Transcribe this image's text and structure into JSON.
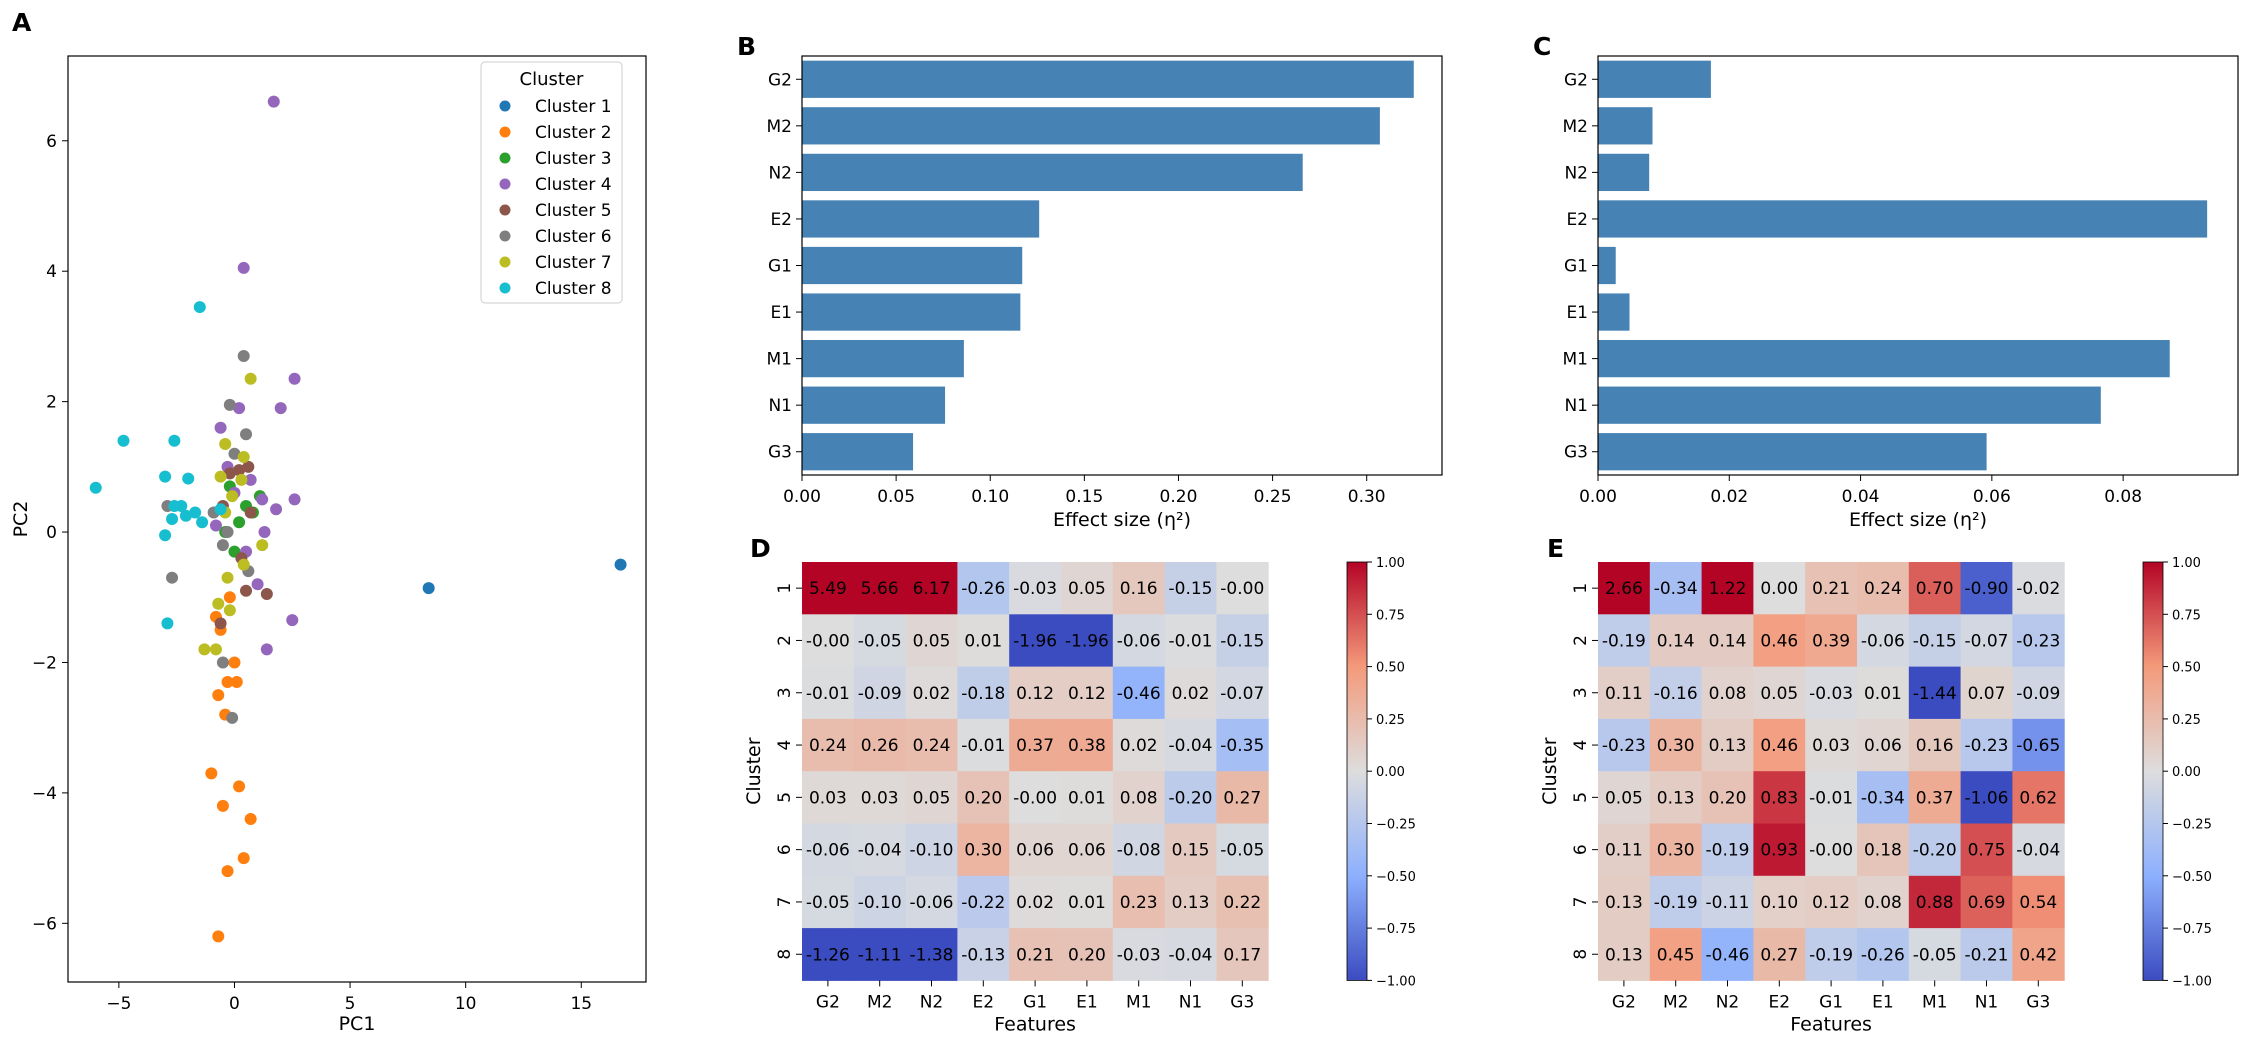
{
  "panel_letters": {
    "a": "A",
    "b": "B",
    "c": "C",
    "d": "D",
    "e": "E"
  },
  "colors": {
    "bar": "#4682b4",
    "clusters": [
      "#1f77b4",
      "#ff7f0e",
      "#2ca02c",
      "#9467bd",
      "#8c564b",
      "#7f7f7f",
      "#bcbd22",
      "#17becf"
    ],
    "cmap": [
      "#3b4cc0",
      "#dddddd",
      "#b40426"
    ]
  },
  "chart_data": [
    {
      "id": "A",
      "type": "scatter",
      "xlabel": "PC1",
      "ylabel": "PC2",
      "xlim": [
        -7.2,
        17.8
      ],
      "ylim": [
        -6.9,
        7.3
      ],
      "xticks": [
        -5,
        0,
        5,
        10,
        15
      ],
      "yticks": [
        -6,
        -4,
        -2,
        0,
        2,
        4,
        6
      ],
      "grid": false,
      "legend_title": "Cluster",
      "legend_position": "top-right",
      "series": [
        {
          "name": "Cluster 1",
          "points": [
            [
              16.7,
              -0.5
            ],
            [
              8.4,
              -0.86
            ]
          ]
        },
        {
          "name": "Cluster 2",
          "points": [
            [
              -0.7,
              -6.2
            ],
            [
              -0.3,
              -5.2
            ],
            [
              0.4,
              -5.0
            ],
            [
              0.7,
              -4.4
            ],
            [
              -0.5,
              -4.2
            ],
            [
              0.2,
              -3.9
            ],
            [
              -1.0,
              -3.7
            ],
            [
              -0.4,
              -2.8
            ],
            [
              -0.7,
              -2.5
            ],
            [
              -0.3,
              -2.3
            ],
            [
              0.1,
              -2.3
            ],
            [
              0.0,
              -2.0
            ],
            [
              -0.6,
              -1.5
            ],
            [
              -0.8,
              -1.3
            ],
            [
              -0.2,
              -1.0
            ]
          ]
        },
        {
          "name": "Cluster 3",
          "points": [
            [
              1.1,
              0.55
            ],
            [
              0.5,
              0.4
            ],
            [
              -0.2,
              0.7
            ],
            [
              0.2,
              0.15
            ],
            [
              -0.4,
              0.0
            ],
            [
              0.8,
              0.3
            ],
            [
              0.0,
              -0.3
            ]
          ]
        },
        {
          "name": "Cluster 4",
          "points": [
            [
              1.7,
              6.6
            ],
            [
              0.4,
              4.05
            ],
            [
              2.6,
              2.35
            ],
            [
              2.0,
              1.9
            ],
            [
              0.2,
              1.9
            ],
            [
              -0.6,
              1.6
            ],
            [
              2.6,
              0.5
            ],
            [
              1.8,
              0.35
            ],
            [
              1.2,
              0.5
            ],
            [
              -0.3,
              1.0
            ],
            [
              2.5,
              -1.35
            ],
            [
              1.4,
              -1.8
            ],
            [
              1.0,
              -0.8
            ],
            [
              0.5,
              -0.3
            ],
            [
              1.3,
              0.0
            ],
            [
              -0.8,
              0.1
            ],
            [
              0.7,
              0.8
            ],
            [
              0.0,
              0.6
            ]
          ]
        },
        {
          "name": "Cluster 5",
          "points": [
            [
              0.6,
              1.0
            ],
            [
              0.2,
              0.95
            ],
            [
              -0.2,
              0.9
            ],
            [
              -0.6,
              -1.4
            ],
            [
              1.4,
              -0.95
            ],
            [
              0.3,
              -0.4
            ],
            [
              0.7,
              0.3
            ],
            [
              -0.5,
              0.4
            ],
            [
              0.5,
              -0.9
            ]
          ]
        },
        {
          "name": "Cluster 6",
          "points": [
            [
              0.4,
              2.7
            ],
            [
              -0.2,
              1.95
            ],
            [
              0.5,
              1.5
            ],
            [
              -2.9,
              0.4
            ],
            [
              -2.7,
              -0.7
            ],
            [
              -0.5,
              -2.0
            ],
            [
              -0.1,
              -2.85
            ],
            [
              -0.3,
              0.0
            ],
            [
              0.6,
              -0.6
            ],
            [
              -0.9,
              0.3
            ],
            [
              0.0,
              1.2
            ],
            [
              -0.5,
              -0.2
            ]
          ]
        },
        {
          "name": "Cluster 7",
          "points": [
            [
              0.7,
              2.35
            ],
            [
              -0.4,
              1.35
            ],
            [
              0.4,
              1.15
            ],
            [
              -0.6,
              0.85
            ],
            [
              -0.4,
              0.3
            ],
            [
              -0.7,
              -1.1
            ],
            [
              -1.3,
              -1.8
            ],
            [
              -0.8,
              -1.8
            ],
            [
              -0.2,
              -1.2
            ],
            [
              1.2,
              -0.2
            ],
            [
              0.4,
              -0.5
            ],
            [
              -0.1,
              0.55
            ],
            [
              -0.3,
              -0.7
            ],
            [
              0.3,
              0.8
            ]
          ]
        },
        {
          "name": "Cluster 8",
          "points": [
            [
              -1.5,
              3.45
            ],
            [
              -4.8,
              1.4
            ],
            [
              -2.6,
              1.4
            ],
            [
              -6.0,
              0.68
            ],
            [
              -3.0,
              0.85
            ],
            [
              -2.0,
              0.82
            ],
            [
              -2.3,
              0.4
            ],
            [
              -1.7,
              0.3
            ],
            [
              -2.6,
              0.4
            ],
            [
              -2.1,
              0.25
            ],
            [
              -1.4,
              0.15
            ],
            [
              -2.7,
              0.2
            ],
            [
              -3.0,
              -0.05
            ],
            [
              -0.6,
              0.35
            ],
            [
              -2.9,
              -1.4
            ]
          ]
        }
      ]
    },
    {
      "id": "B",
      "type": "bar",
      "orientation": "horizontal",
      "xlabel": "Effect size (η²)",
      "xlim": [
        0,
        0.34
      ],
      "xticks": [
        "0.00",
        "0.05",
        "0.10",
        "0.15",
        "0.20",
        "0.25",
        "0.30"
      ],
      "categories": [
        "G2",
        "M2",
        "N2",
        "E2",
        "G1",
        "E1",
        "M1",
        "N1",
        "G3"
      ],
      "values": [
        0.325,
        0.307,
        0.266,
        0.126,
        0.117,
        0.116,
        0.086,
        0.076,
        0.059
      ]
    },
    {
      "id": "C",
      "type": "bar",
      "orientation": "horizontal",
      "xlabel": "Effect size (η²)",
      "xlim": [
        0,
        0.0975
      ],
      "xticks": [
        "0.00",
        "0.02",
        "0.04",
        "0.06",
        "0.08"
      ],
      "categories": [
        "G2",
        "M2",
        "N2",
        "E2",
        "G1",
        "E1",
        "M1",
        "N1",
        "G3"
      ],
      "values": [
        0.0172,
        0.0083,
        0.0078,
        0.0928,
        0.0027,
        0.0048,
        0.0871,
        0.0766,
        0.0592
      ]
    },
    {
      "id": "D",
      "type": "heatmap",
      "xlabel": "Features",
      "ylabel": "Cluster",
      "columns": [
        "G2",
        "M2",
        "N2",
        "E2",
        "G1",
        "E1",
        "M1",
        "N1",
        "G3"
      ],
      "rows": [
        "1",
        "2",
        "3",
        "4",
        "5",
        "6",
        "7",
        "8"
      ],
      "values": [
        [
          "5.49",
          "5.66",
          "6.17",
          "-0.26",
          "-0.03",
          "0.05",
          "0.16",
          "-0.15",
          "-0.00"
        ],
        [
          "-0.00",
          "-0.05",
          "0.05",
          "0.01",
          "-1.96",
          "-1.96",
          "-0.06",
          "-0.01",
          "-0.15"
        ],
        [
          "-0.01",
          "-0.09",
          "0.02",
          "-0.18",
          "0.12",
          "0.12",
          "-0.46",
          "0.02",
          "-0.07"
        ],
        [
          "0.24",
          "0.26",
          "0.24",
          "-0.01",
          "0.37",
          "0.38",
          "0.02",
          "-0.04",
          "-0.35"
        ],
        [
          "0.03",
          "0.03",
          "0.05",
          "0.20",
          "-0.00",
          "0.01",
          "0.08",
          "-0.20",
          "0.27"
        ],
        [
          "-0.06",
          "-0.04",
          "-0.10",
          "0.30",
          "0.06",
          "0.06",
          "-0.08",
          "0.15",
          "-0.05"
        ],
        [
          "-0.05",
          "-0.10",
          "-0.06",
          "-0.22",
          "0.02",
          "0.01",
          "0.23",
          "0.13",
          "0.22"
        ],
        [
          "-1.26",
          "-1.11",
          "-1.38",
          "-0.13",
          "0.21",
          "0.20",
          "-0.03",
          "-0.04",
          "0.17"
        ]
      ],
      "vmin": -1,
      "vmax": 1,
      "colorbar_ticks": [
        "1.00",
        "0.75",
        "0.50",
        "0.25",
        "0.00",
        "−0.25",
        "−0.50",
        "−0.75",
        "−1.00"
      ]
    },
    {
      "id": "E",
      "type": "heatmap",
      "xlabel": "Features",
      "ylabel": "Cluster",
      "columns": [
        "G2",
        "M2",
        "N2",
        "E2",
        "G1",
        "E1",
        "M1",
        "N1",
        "G3"
      ],
      "rows": [
        "1",
        "2",
        "3",
        "4",
        "5",
        "6",
        "7",
        "8"
      ],
      "values": [
        [
          "2.66",
          "-0.34",
          "1.22",
          "0.00",
          "0.21",
          "0.24",
          "0.70",
          "-0.90",
          "-0.02"
        ],
        [
          "-0.19",
          "0.14",
          "0.14",
          "0.46",
          "0.39",
          "-0.06",
          "-0.15",
          "-0.07",
          "-0.23"
        ],
        [
          "0.11",
          "-0.16",
          "0.08",
          "0.05",
          "-0.03",
          "0.01",
          "-1.44",
          "0.07",
          "-0.09"
        ],
        [
          "-0.23",
          "0.30",
          "0.13",
          "0.46",
          "0.03",
          "0.06",
          "0.16",
          "-0.23",
          "-0.65"
        ],
        [
          "0.05",
          "0.13",
          "0.20",
          "0.83",
          "-0.01",
          "-0.34",
          "0.37",
          "-1.06",
          "0.62"
        ],
        [
          "0.11",
          "0.30",
          "-0.19",
          "0.93",
          "-0.00",
          "0.18",
          "-0.20",
          "0.75",
          "-0.04"
        ],
        [
          "0.13",
          "-0.19",
          "-0.11",
          "0.10",
          "0.12",
          "0.08",
          "0.88",
          "0.69",
          "0.54"
        ],
        [
          "0.13",
          "0.45",
          "-0.46",
          "0.27",
          "-0.19",
          "-0.26",
          "-0.05",
          "-0.21",
          "0.42"
        ]
      ],
      "vmin": -1,
      "vmax": 1,
      "colorbar_ticks": [
        "1.00",
        "0.75",
        "0.50",
        "0.25",
        "0.00",
        "−0.25",
        "−0.50",
        "−0.75",
        "−1.00"
      ]
    }
  ]
}
